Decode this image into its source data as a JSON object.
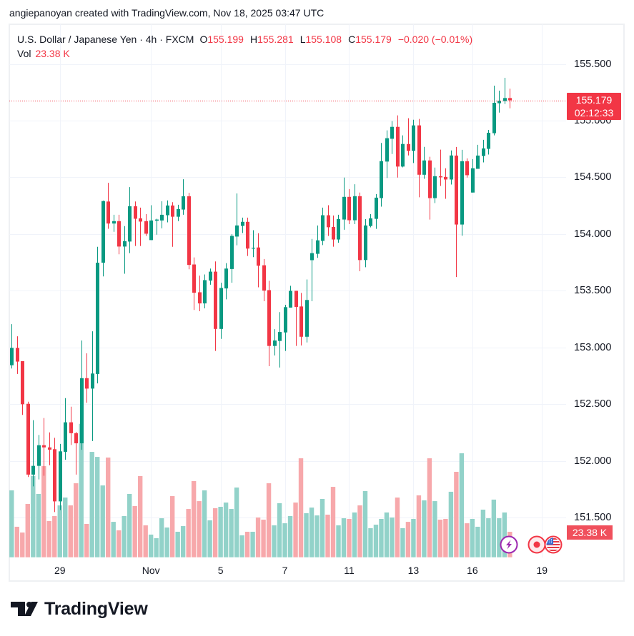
{
  "watermark": {
    "text": "angiepanoyan created with TradingView.com, Nov 18, 2025 03:47 UTC"
  },
  "legend": {
    "symbol_title": "U.S. Dollar / Japanese Yen · 4h · FXCM",
    "open_label": "O",
    "open": "155.199",
    "high_label": "H",
    "high": "155.281",
    "low_label": "L",
    "low": "155.108",
    "close_label": "C",
    "close": "155.179",
    "change": "−0.020 (−0.01%)",
    "vol_label": "Vol",
    "vol": "23.38 K"
  },
  "price_axis": {
    "labels": [
      "155.500",
      "155.000",
      "154.500",
      "154.000",
      "153.500",
      "153.000",
      "152.500",
      "152.000",
      "151.500"
    ],
    "last_price": "155.179",
    "countdown": "02:12:33",
    "volume_value": "23.38 K"
  },
  "time_axis": {
    "labels": [
      "29",
      "Nov",
      "5",
      "7",
      "11",
      "13",
      "16",
      "19"
    ]
  },
  "event_markers": [
    {
      "type": "news",
      "icon": "lightning-icon",
      "color": "#9c27b0"
    },
    {
      "type": "event",
      "icon": "dot-icon",
      "color": "#f23645"
    },
    {
      "type": "economic-event",
      "icon": "us-flag-icon",
      "color": "#f23645"
    }
  ],
  "logo": {
    "text": "TradingView"
  },
  "colors": {
    "up": "#089981",
    "down": "#f23645",
    "up_volume": "#92d2c9",
    "down_volume": "#f7a8ab",
    "grid": "#f0f3fa",
    "text": "#131722",
    "price_label_bg": "#f23645",
    "volume_label_bg": "#f0505c"
  },
  "chart_data": {
    "type": "candlestick",
    "title": "U.S. Dollar / Japanese Yen · 4h · FXCM",
    "xlabel": "",
    "ylabel": "",
    "grid": true,
    "legend_position": "top-left",
    "ylim": [
      151.15,
      155.85
    ],
    "y_ticks": [
      155.5,
      155.0,
      154.5,
      154.0,
      153.5,
      153.0,
      152.5,
      152.0,
      151.5
    ],
    "x_ticks": [
      {
        "label": "29",
        "index": 9
      },
      {
        "label": "Nov",
        "index": 26
      },
      {
        "label": "5",
        "index": 39
      },
      {
        "label": "7",
        "index": 51
      },
      {
        "label": "11",
        "index": 63
      },
      {
        "label": "13",
        "index": 75
      },
      {
        "label": "16",
        "index": 86
      },
      {
        "label": "19",
        "index": 99
      }
    ],
    "last_price": 155.179,
    "series": [
      {
        "name": "USDJPY 4h",
        "fields": [
          "open",
          "high",
          "low",
          "close"
        ],
        "ohlc": [
          [
            152.844,
            153.206,
            152.815,
            152.997
          ],
          [
            152.997,
            153.099,
            152.767,
            152.876
          ],
          [
            152.88,
            152.88,
            152.406,
            152.5
          ],
          [
            152.504,
            152.523,
            151.859,
            151.88
          ],
          [
            151.88,
            152.36,
            151.776,
            151.957
          ],
          [
            151.957,
            152.229,
            151.838,
            152.139
          ],
          [
            152.139,
            152.379,
            151.87,
            152.12
          ],
          [
            152.12,
            152.252,
            151.963,
            152.1
          ],
          [
            152.104,
            152.204,
            151.55,
            151.644
          ],
          [
            151.644,
            152.151,
            151.567,
            152.085
          ],
          [
            152.081,
            152.554,
            152.011,
            152.341
          ],
          [
            152.341,
            152.479,
            152.141,
            152.245
          ],
          [
            152.245,
            152.256,
            151.88,
            152.156
          ],
          [
            152.156,
            153.062,
            152.099,
            152.73
          ],
          [
            152.73,
            152.949,
            152.513,
            152.638
          ],
          [
            152.638,
            153.143,
            152.176,
            152.771
          ],
          [
            152.767,
            153.888,
            152.684,
            153.748
          ],
          [
            153.748,
            154.295,
            153.627,
            154.291
          ],
          [
            154.287,
            154.452,
            154.047,
            154.093
          ],
          [
            154.093,
            154.17,
            154.02,
            154.114
          ],
          [
            154.114,
            154.17,
            153.822,
            153.89
          ],
          [
            153.89,
            154.07,
            153.65,
            153.938
          ],
          [
            153.934,
            154.414,
            153.832,
            154.245
          ],
          [
            154.245,
            154.287,
            153.895,
            154.135
          ],
          [
            154.139,
            154.233,
            153.895,
            154.11
          ],
          [
            154.114,
            154.176,
            153.984,
            154.003
          ],
          [
            153.947,
            154.254,
            153.947,
            154.12
          ],
          [
            154.118,
            154.135,
            153.995,
            154.128
          ],
          [
            154.12,
            154.289,
            154.051,
            154.17
          ],
          [
            154.166,
            154.297,
            154.103,
            154.252
          ],
          [
            154.252,
            154.281,
            153.888,
            154.153
          ],
          [
            154.153,
            154.258,
            154.114,
            154.22
          ],
          [
            154.216,
            154.483,
            154.17,
            154.333
          ],
          [
            154.333,
            154.364,
            153.69,
            153.728
          ],
          [
            153.732,
            153.794,
            153.331,
            153.483
          ],
          [
            153.487,
            153.634,
            153.32,
            153.389
          ],
          [
            153.389,
            153.644,
            153.345,
            153.594
          ],
          [
            153.59,
            153.696,
            153.554,
            153.669
          ],
          [
            153.669,
            153.759,
            152.97,
            153.164
          ],
          [
            153.164,
            153.571,
            153.076,
            153.525
          ],
          [
            153.521,
            153.744,
            153.425,
            153.696
          ],
          [
            153.692,
            153.999,
            153.571,
            153.984
          ],
          [
            153.978,
            154.358,
            153.901,
            154.076
          ],
          [
            154.072,
            154.145,
            154.009,
            154.108
          ],
          [
            154.108,
            154.145,
            153.807,
            153.872
          ],
          [
            153.872,
            154.034,
            153.797,
            153.88
          ],
          [
            153.882,
            154.007,
            153.531,
            153.721
          ],
          [
            153.725,
            153.78,
            153.408,
            153.502
          ],
          [
            153.506,
            153.588,
            152.836,
            153.014
          ],
          [
            153.014,
            153.162,
            152.93,
            153.062
          ],
          [
            153.058,
            153.312,
            152.824,
            153.137
          ],
          [
            153.133,
            153.377,
            152.97,
            153.356
          ],
          [
            153.352,
            153.544,
            153.352,
            153.5
          ],
          [
            153.5,
            153.5,
            153.014,
            153.358
          ],
          [
            153.362,
            153.481,
            153.018,
            153.095
          ],
          [
            153.095,
            153.6,
            153.045,
            153.419
          ],
          [
            153.77,
            153.957,
            153.408,
            153.832
          ],
          [
            153.826,
            154.076,
            153.79,
            153.945
          ],
          [
            153.94,
            154.233,
            153.903,
            154.166
          ],
          [
            154.166,
            154.254,
            153.984,
            154.06
          ],
          [
            154.063,
            154.164,
            153.889,
            153.952
          ],
          [
            153.952,
            154.17,
            153.924,
            154.132
          ],
          [
            154.128,
            154.498,
            154.038,
            154.328
          ],
          [
            154.328,
            154.397,
            154.088,
            154.122
          ],
          [
            154.122,
            154.439,
            154.088,
            154.334
          ],
          [
            154.334,
            154.366,
            153.672,
            153.771
          ],
          [
            153.771,
            154.132,
            153.708,
            154.076
          ],
          [
            154.071,
            154.176,
            154.059,
            154.139
          ],
          [
            154.134,
            154.353,
            154.046,
            154.321
          ],
          [
            154.317,
            154.803,
            154.242,
            154.643
          ],
          [
            154.639,
            154.914,
            154.494,
            154.845
          ],
          [
            154.84,
            154.996,
            154.706,
            154.945
          ],
          [
            154.945,
            155.046,
            154.498,
            154.595
          ],
          [
            154.595,
            154.87,
            154.588,
            154.794
          ],
          [
            154.794,
            155.021,
            154.693,
            154.733
          ],
          [
            154.733,
            155.008,
            154.626,
            154.958
          ],
          [
            154.958,
            155.015,
            154.324,
            154.523
          ],
          [
            154.523,
            154.769,
            154.487,
            154.649
          ],
          [
            154.649,
            154.681,
            154.128,
            154.317
          ],
          [
            154.317,
            154.586,
            154.273,
            154.51
          ],
          [
            154.51,
            154.744,
            154.424,
            154.5
          ],
          [
            154.504,
            154.58,
            154.311,
            154.481
          ],
          [
            154.481,
            154.737,
            154.437,
            154.693
          ],
          [
            154.692,
            154.768,
            153.621,
            154.084
          ],
          [
            154.084,
            154.743,
            153.985,
            154.642
          ],
          [
            154.642,
            154.667,
            154.498,
            154.519
          ],
          [
            154.366,
            154.661,
            154.366,
            154.58
          ],
          [
            154.575,
            154.787,
            154.575,
            154.692
          ],
          [
            154.688,
            154.831,
            154.632,
            154.755
          ],
          [
            154.751,
            154.918,
            154.701,
            154.893
          ],
          [
            154.889,
            155.308,
            154.87,
            155.157
          ],
          [
            155.153,
            155.264,
            155.071,
            155.176
          ],
          [
            155.172,
            155.377,
            155.146,
            155.199
          ],
          [
            155.199,
            155.281,
            155.108,
            155.179
          ]
        ]
      },
      {
        "name": "Vol",
        "unit": "K",
        "values": [
          61.4,
          28.0,
          22.7,
          48.9,
          74.7,
          58.1,
          83.6,
          33.2,
          37.8,
          47.6,
          54.8,
          47.6,
          67.9,
          122.5,
          30.6,
          96.7,
          92.1,
          65.9,
          91.5,
          32.5,
          24.7,
          37.8,
          58.1,
          47.0,
          74.5,
          29.3,
          20.8,
          17.5,
          35.8,
          27.3,
          56.1,
          23.4,
          28.6,
          44.3,
          69.9,
          51.5,
          61.4,
          33.9,
          45.0,
          46.3,
          50.2,
          44.3,
          64.0,
          20.1,
          23.4,
          23.4,
          36.5,
          34.5,
          67.9,
          29.3,
          49.6,
          31.2,
          37.8,
          50.2,
          90.8,
          40.4,
          45.6,
          38.4,
          53.5,
          39.1,
          64.6,
          29.3,
          35.8,
          35.2,
          41.1,
          47.6,
          60.7,
          26.7,
          29.9,
          35.2,
          41.1,
          36.5,
          54.8,
          26.7,
          32.5,
          35.2,
          56.8,
          52.2,
          90.8,
          51.5,
          34.5,
          35.2,
          60.1,
          78.4,
          95.4,
          31.2,
          35.2,
          28.0,
          43.7,
          35.8,
          52.9,
          35.8,
          41.1,
          23.38
        ]
      }
    ]
  }
}
